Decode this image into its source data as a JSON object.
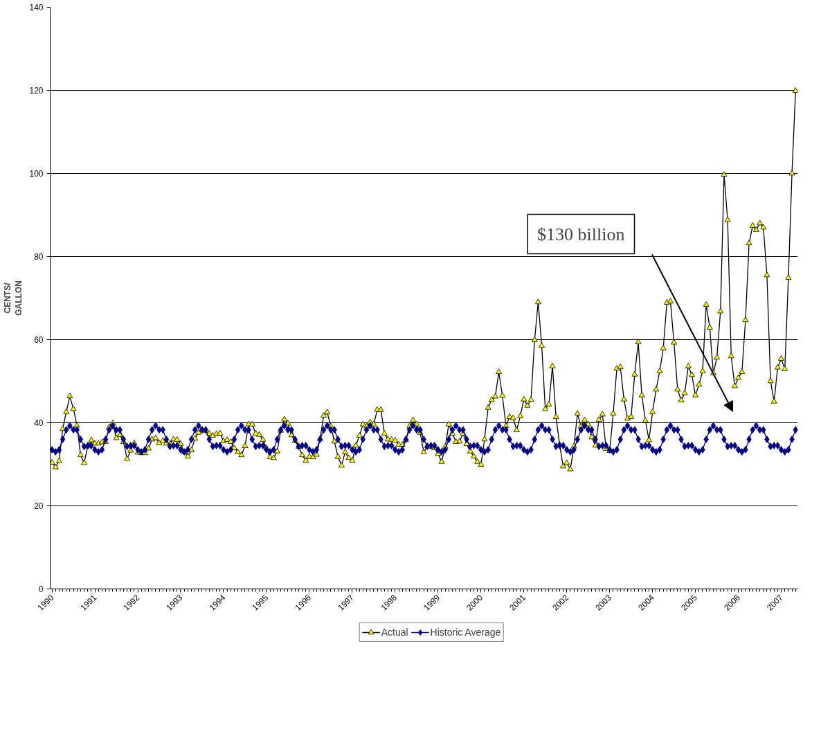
{
  "chart_data": {
    "type": "line",
    "ylabel": "CENTS/\nGALLON",
    "x": [
      "1990-01",
      "1990-02",
      "1990-03",
      "1990-04",
      "1990-05",
      "1990-06",
      "1990-07",
      "1990-08",
      "1990-09",
      "1990-10",
      "1990-11",
      "1990-12",
      "1991-01",
      "1991-02",
      "1991-03",
      "1991-04",
      "1991-05",
      "1991-06",
      "1991-07",
      "1991-08",
      "1991-09",
      "1991-10",
      "1991-11",
      "1991-12",
      "1992-01",
      "1992-02",
      "1992-03",
      "1992-04",
      "1992-05",
      "1992-06",
      "1992-07",
      "1992-08",
      "1992-09",
      "1992-10",
      "1992-11",
      "1992-12",
      "1993-01",
      "1993-02",
      "1993-03",
      "1993-04",
      "1993-05",
      "1993-06",
      "1993-07",
      "1993-08",
      "1993-09",
      "1993-10",
      "1993-11",
      "1993-12",
      "1994-01",
      "1994-02",
      "1994-03",
      "1994-04",
      "1994-05",
      "1994-06",
      "1994-07",
      "1994-08",
      "1994-09",
      "1994-10",
      "1994-11",
      "1994-12",
      "1995-01",
      "1995-02",
      "1995-03",
      "1995-04",
      "1995-05",
      "1995-06",
      "1995-07",
      "1995-08",
      "1995-09",
      "1995-10",
      "1995-11",
      "1995-12",
      "1996-01",
      "1996-02",
      "1996-03",
      "1996-04",
      "1996-05",
      "1996-06",
      "1996-07",
      "1996-08",
      "1996-09",
      "1996-10",
      "1996-11",
      "1996-12",
      "1997-01",
      "1997-02",
      "1997-03",
      "1997-04",
      "1997-05",
      "1997-06",
      "1997-07",
      "1997-08",
      "1997-09",
      "1997-10",
      "1997-11",
      "1997-12",
      "1998-01",
      "1998-02",
      "1998-03",
      "1998-04",
      "1998-05",
      "1998-06",
      "1998-07",
      "1998-08",
      "1998-09",
      "1998-10",
      "1998-11",
      "1998-12",
      "1999-01",
      "1999-02",
      "1999-03",
      "1999-04",
      "1999-05",
      "1999-06",
      "1999-07",
      "1999-08",
      "1999-09",
      "1999-10",
      "1999-11",
      "1999-12",
      "2000-01",
      "2000-02",
      "2000-03",
      "2000-04",
      "2000-05",
      "2000-06",
      "2000-07",
      "2000-08",
      "2000-09",
      "2000-10",
      "2000-11",
      "2000-12",
      "2001-01",
      "2001-02",
      "2001-03",
      "2001-04",
      "2001-05",
      "2001-06",
      "2001-07",
      "2001-08",
      "2001-09",
      "2001-10",
      "2001-11",
      "2001-12",
      "2002-01",
      "2002-02",
      "2002-03",
      "2002-04",
      "2002-05",
      "2002-06",
      "2002-07",
      "2002-08",
      "2002-09",
      "2002-10",
      "2002-11",
      "2002-12",
      "2003-01",
      "2003-02",
      "2003-03",
      "2003-04",
      "2003-05",
      "2003-06",
      "2003-07",
      "2003-08",
      "2003-09",
      "2003-10",
      "2003-11",
      "2003-12",
      "2004-01",
      "2004-02",
      "2004-03",
      "2004-04",
      "2004-05",
      "2004-06",
      "2004-07",
      "2004-08",
      "2004-09",
      "2004-10",
      "2004-11",
      "2004-12",
      "2005-01",
      "2005-02",
      "2005-03",
      "2005-04",
      "2005-05",
      "2005-06",
      "2005-07",
      "2005-08",
      "2005-09",
      "2005-10",
      "2005-11",
      "2005-12",
      "2006-01",
      "2006-02",
      "2006-03",
      "2006-04",
      "2006-05",
      "2006-06",
      "2006-07",
      "2006-08",
      "2006-09",
      "2006-10",
      "2006-11",
      "2006-12",
      "2007-01",
      "2007-02",
      "2007-03",
      "2007-04",
      "2007-05"
    ],
    "series": [
      {
        "name": "Actual",
        "color": "#ffff00",
        "marker": "triangle",
        "values": [
          30.4,
          29.3,
          30.8,
          38.5,
          42.6,
          46.4,
          43.3,
          39.3,
          32.2,
          30.3,
          34.3,
          35.8,
          35.0,
          35.0,
          35.3,
          35.4,
          38.9,
          39.9,
          36.3,
          37.1,
          35.4,
          31.3,
          33.3,
          35.1,
          32.8,
          32.7,
          32.7,
          33.8,
          36.0,
          36.3,
          35.1,
          35.6,
          35.0,
          35.0,
          36.0,
          35.9,
          34.9,
          32.9,
          31.9,
          33.4,
          36.2,
          37.6,
          38.3,
          38.0,
          37.4,
          36.9,
          37.3,
          37.4,
          35.6,
          35.9,
          35.4,
          33.9,
          32.9,
          32.2,
          34.4,
          39.6,
          39.6,
          37.4,
          37.1,
          35.9,
          33.9,
          31.7,
          31.5,
          33.1,
          38.1,
          40.8,
          39.8,
          37.0,
          35.6,
          34.2,
          32.2,
          30.9,
          31.8,
          31.7,
          32.3,
          36.1,
          41.7,
          42.5,
          39.1,
          35.5,
          31.8,
          29.7,
          32.9,
          31.5,
          30.9,
          34.5,
          36.9,
          39.6,
          39.1,
          40.1,
          39.6,
          43.1,
          43.1,
          37.4,
          36.0,
          35.9,
          35.7,
          34.7,
          34.7,
          35.9,
          39.1,
          40.6,
          39.6,
          37.6,
          32.9,
          34.4,
          34.2,
          33.9,
          32.5,
          30.6,
          34.2,
          39.6,
          37.4,
          35.4,
          35.5,
          37.4,
          34.9,
          33.1,
          31.9,
          30.6,
          29.9,
          36.0,
          43.6,
          45.5,
          46.3,
          52.2,
          46.5,
          39.2,
          41.4,
          41.1,
          38.2,
          41.6,
          45.6,
          44.1,
          45.5,
          59.9,
          69.0,
          58.5,
          43.3,
          44.4,
          53.6,
          41.4,
          34.7,
          29.5,
          30.3,
          28.8,
          34.3,
          42.2,
          39.1,
          40.6,
          39.6,
          36.5,
          34.5,
          40.7,
          42.0,
          33.7,
          33.2,
          42.2,
          53.0,
          53.4,
          45.6,
          41.0,
          41.4,
          51.6,
          59.4,
          46.6,
          40.5,
          35.8,
          42.6,
          48.0,
          52.4,
          57.9,
          68.9,
          69.2,
          59.3,
          48.0,
          45.4,
          47.1,
          53.6,
          51.5,
          46.6,
          49.2,
          52.4,
          68.4,
          62.9,
          51.9,
          55.7,
          66.8,
          99.7,
          88.8,
          56.0,
          48.8,
          50.8,
          52.2,
          64.7,
          83.2,
          87.4,
          86.4,
          88.0,
          87.0,
          75.5,
          50.0,
          45.1,
          53.3,
          55.4,
          52.9,
          74.9,
          100.0,
          119.9
        ]
      },
      {
        "name": "Historic Average",
        "color": "#000080",
        "marker": "diamond",
        "values": [
          33.5,
          33.0,
          33.5,
          36.0,
          38.3,
          39.3,
          38.3,
          38.3,
          36.0,
          34.3,
          34.5,
          34.5,
          33.5,
          33.0,
          33.5,
          36.0,
          38.3,
          39.3,
          38.3,
          38.3,
          36.0,
          34.3,
          34.5,
          34.5,
          33.5,
          33.0,
          33.5,
          36.0,
          38.3,
          39.3,
          38.3,
          38.3,
          36.0,
          34.3,
          34.5,
          34.5,
          33.5,
          33.0,
          33.5,
          36.0,
          38.3,
          39.3,
          38.3,
          38.3,
          36.0,
          34.3,
          34.5,
          34.5,
          33.5,
          33.0,
          33.5,
          36.0,
          38.3,
          39.3,
          38.3,
          38.3,
          36.0,
          34.3,
          34.5,
          34.5,
          33.5,
          33.0,
          33.5,
          36.0,
          38.3,
          39.3,
          38.3,
          38.3,
          36.0,
          34.3,
          34.5,
          34.5,
          33.5,
          33.0,
          33.5,
          36.0,
          38.3,
          39.3,
          38.3,
          38.3,
          36.0,
          34.3,
          34.5,
          34.5,
          33.5,
          33.0,
          33.5,
          36.0,
          38.3,
          39.3,
          38.3,
          38.3,
          36.0,
          34.3,
          34.5,
          34.5,
          33.5,
          33.0,
          33.5,
          36.0,
          38.3,
          39.3,
          38.3,
          38.3,
          36.0,
          34.3,
          34.5,
          34.5,
          33.5,
          33.0,
          33.5,
          36.0,
          38.3,
          39.3,
          38.3,
          38.3,
          36.0,
          34.3,
          34.5,
          34.5,
          33.5,
          33.0,
          33.5,
          36.0,
          38.3,
          39.3,
          38.3,
          38.3,
          36.0,
          34.3,
          34.5,
          34.5,
          33.5,
          33.0,
          33.5,
          36.0,
          38.3,
          39.3,
          38.3,
          38.3,
          36.0,
          34.3,
          34.5,
          34.5,
          33.5,
          33.0,
          33.5,
          36.0,
          38.3,
          39.3,
          38.3,
          38.3,
          36.0,
          34.3,
          34.5,
          34.5,
          33.5,
          33.0,
          33.5,
          36.0,
          38.3,
          39.3,
          38.3,
          38.3,
          36.0,
          34.3,
          34.5,
          34.5,
          33.5,
          33.0,
          33.5,
          36.0,
          38.3,
          39.3,
          38.3,
          38.3,
          36.0,
          34.3,
          34.5,
          34.5,
          33.5,
          33.0,
          33.5,
          36.0,
          38.3,
          39.3,
          38.3,
          38.3,
          36.0,
          34.3,
          34.5,
          34.5,
          33.5,
          33.0,
          33.5,
          36.0,
          38.3,
          39.3,
          38.3,
          38.3,
          36.0,
          34.3,
          34.5,
          34.5,
          33.5,
          33.0,
          33.5,
          36.0,
          38.3
        ]
      }
    ],
    "xlim": [
      "1989-12-16",
      "2007-05-20"
    ],
    "xticks": [
      {
        "value": "1990-01",
        "label": "1990"
      },
      {
        "value": "1991-01",
        "label": "1991"
      },
      {
        "value": "1992-01",
        "label": "1992"
      },
      {
        "value": "1993-01",
        "label": "1993"
      },
      {
        "value": "1994-01",
        "label": "1994"
      },
      {
        "value": "1995-01",
        "label": "1995"
      },
      {
        "value": "1996-01",
        "label": "1996"
      },
      {
        "value": "1997-01",
        "label": "1997"
      },
      {
        "value": "1998-01",
        "label": "1998"
      },
      {
        "value": "1999-01",
        "label": "1999"
      },
      {
        "value": "2000-01",
        "label": "2000"
      },
      {
        "value": "2001-01",
        "label": "2001"
      },
      {
        "value": "2002-01",
        "label": "2002"
      },
      {
        "value": "2003-01",
        "label": "2003"
      },
      {
        "value": "2004-01",
        "label": "2004"
      },
      {
        "value": "2005-01",
        "label": "2005"
      },
      {
        "value": "2006-01",
        "label": "2006"
      },
      {
        "value": "2007-01",
        "label": "2007"
      }
    ],
    "ylim": [
      0,
      140
    ],
    "yticks": [
      0,
      20,
      40,
      60,
      80,
      100,
      120,
      140
    ],
    "grid": "y",
    "legend": "bottom",
    "annotations": [
      "$130 billion"
    ]
  }
}
